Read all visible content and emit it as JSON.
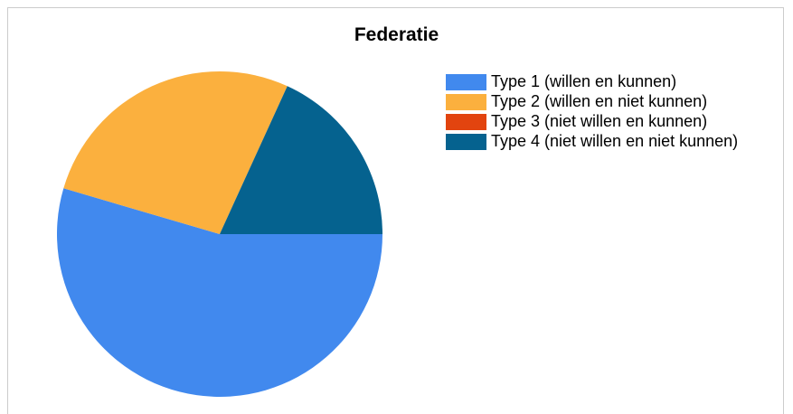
{
  "chart_data": {
    "type": "pie",
    "title": "Federatie",
    "categories": [
      "Type 1 (willen en kunnen)",
      "Type 2 (willen en niet kunnen)",
      "Type 3 (niet willen en kunnen)",
      "Type 4 (niet willen en niet kunnen)"
    ],
    "values": [
      6,
      3,
      0,
      2
    ],
    "colors": [
      "#4189ee",
      "#fbb03e",
      "#e2440f",
      "#05628f"
    ],
    "legend": "right"
  }
}
